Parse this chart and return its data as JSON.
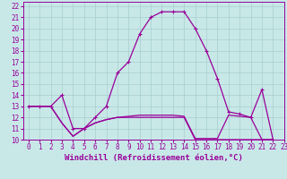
{
  "background_color": "#c8e8e8",
  "line_color": "#990099",
  "grid_color": "#a8cece",
  "xlabel": "Windchill (Refroidissement éolien,°C)",
  "xlabel_color": "#990099",
  "xlim": [
    -0.5,
    23
  ],
  "ylim": [
    10,
    22.4
  ],
  "yticks": [
    10,
    11,
    12,
    13,
    14,
    15,
    16,
    17,
    18,
    19,
    20,
    21,
    22
  ],
  "xticks": [
    0,
    1,
    2,
    3,
    4,
    5,
    6,
    7,
    8,
    9,
    10,
    11,
    12,
    13,
    14,
    15,
    16,
    17,
    18,
    19,
    20,
    21,
    22,
    23
  ],
  "series1_x": [
    0,
    1,
    2,
    3,
    4,
    5,
    6,
    7,
    8,
    9,
    10,
    11,
    12,
    13,
    14,
    15,
    16,
    17,
    18,
    19,
    20,
    21,
    22
  ],
  "series1_y": [
    13,
    13,
    13,
    14,
    11,
    11,
    12,
    13,
    16,
    17,
    19.5,
    21,
    21.5,
    21.5,
    21.5,
    20,
    18,
    15.5,
    12.5,
    12.3,
    12.0,
    14.5,
    10
  ],
  "series2_x": [
    0,
    1,
    2,
    3,
    4,
    5,
    6,
    7,
    8,
    9,
    10,
    11,
    12,
    13,
    14,
    15,
    16,
    17,
    18,
    19,
    20,
    21,
    22
  ],
  "series2_y": [
    13,
    13,
    13,
    11.5,
    10.3,
    11.0,
    11.5,
    11.8,
    12.0,
    12.0,
    12.0,
    12.0,
    12.0,
    12.0,
    12.0,
    10.0,
    10.0,
    10.0,
    10.0,
    10.0,
    10.0,
    10.0,
    10.0
  ],
  "series3_x": [
    0,
    1,
    2,
    3,
    4,
    5,
    6,
    7,
    8,
    9,
    10,
    11,
    12,
    13,
    14,
    15,
    16,
    17,
    18,
    19,
    20,
    21,
    22
  ],
  "series3_y": [
    13,
    13,
    13,
    11.5,
    10.3,
    11.0,
    11.5,
    11.8,
    12.0,
    12.1,
    12.2,
    12.2,
    12.2,
    12.2,
    12.1,
    10.1,
    10.1,
    10.1,
    12.2,
    12.1,
    12.0,
    10.0,
    10.0
  ],
  "marker": "+",
  "markersize": 3.5,
  "markeredgewidth": 0.8,
  "linewidth": 0.9,
  "tick_fontsize": 5.5,
  "xlabel_fontsize": 6.5
}
